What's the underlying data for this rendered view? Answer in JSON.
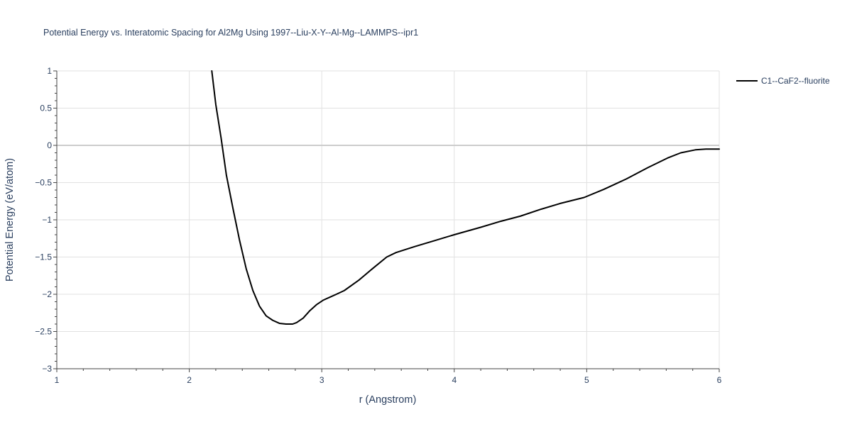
{
  "chart_data": {
    "type": "line",
    "title": "Potential Energy vs. Interatomic Spacing for Al2Mg Using 1997--Liu-X-Y--Al-Mg--LAMMPS--ipr1",
    "xlabel": "r (Angstrom)",
    "ylabel": "Potential Energy (eV/atom)",
    "xlim": [
      1,
      6
    ],
    "ylim": [
      -3,
      1
    ],
    "x_ticks": [
      1,
      2,
      3,
      4,
      5,
      6
    ],
    "x_tick_labels": [
      "1",
      "2",
      "3",
      "4",
      "5",
      "6"
    ],
    "y_ticks": [
      1,
      0.5,
      0,
      -0.5,
      -1,
      -1.5,
      -2,
      -2.5,
      -3
    ],
    "y_tick_labels": [
      "1",
      "0.5",
      "0",
      "−0.5",
      "−1",
      "−1.5",
      "−2",
      "−2.5",
      "−3"
    ],
    "grid": true,
    "legend_position": "top-right",
    "series": [
      {
        "name": "C1--CaF2--fluorite",
        "color": "#000000",
        "x": [
          2.17,
          2.2,
          2.24,
          2.28,
          2.33,
          2.38,
          2.43,
          2.48,
          2.53,
          2.58,
          2.63,
          2.68,
          2.73,
          2.78,
          2.81,
          2.86,
          2.91,
          2.96,
          3.01,
          3.06,
          3.11,
          3.17,
          3.28,
          3.38,
          3.49,
          3.56,
          3.7,
          3.85,
          4.0,
          4.2,
          4.35,
          4.5,
          4.65,
          4.8,
          4.98,
          5.13,
          5.3,
          5.46,
          5.61,
          5.71,
          5.82,
          5.9,
          6.0
        ],
        "y": [
          1.0,
          0.55,
          0.1,
          -0.4,
          -0.85,
          -1.28,
          -1.66,
          -1.95,
          -2.16,
          -2.29,
          -2.35,
          -2.39,
          -2.4,
          -2.4,
          -2.38,
          -2.32,
          -2.22,
          -2.14,
          -2.08,
          -2.04,
          -2.0,
          -1.95,
          -1.81,
          -1.66,
          -1.5,
          -1.44,
          -1.36,
          -1.28,
          -1.2,
          -1.1,
          -1.02,
          -0.95,
          -0.86,
          -0.78,
          -0.7,
          -0.59,
          -0.45,
          -0.3,
          -0.17,
          -0.1,
          -0.06,
          -0.05,
          -0.05
        ]
      }
    ]
  }
}
